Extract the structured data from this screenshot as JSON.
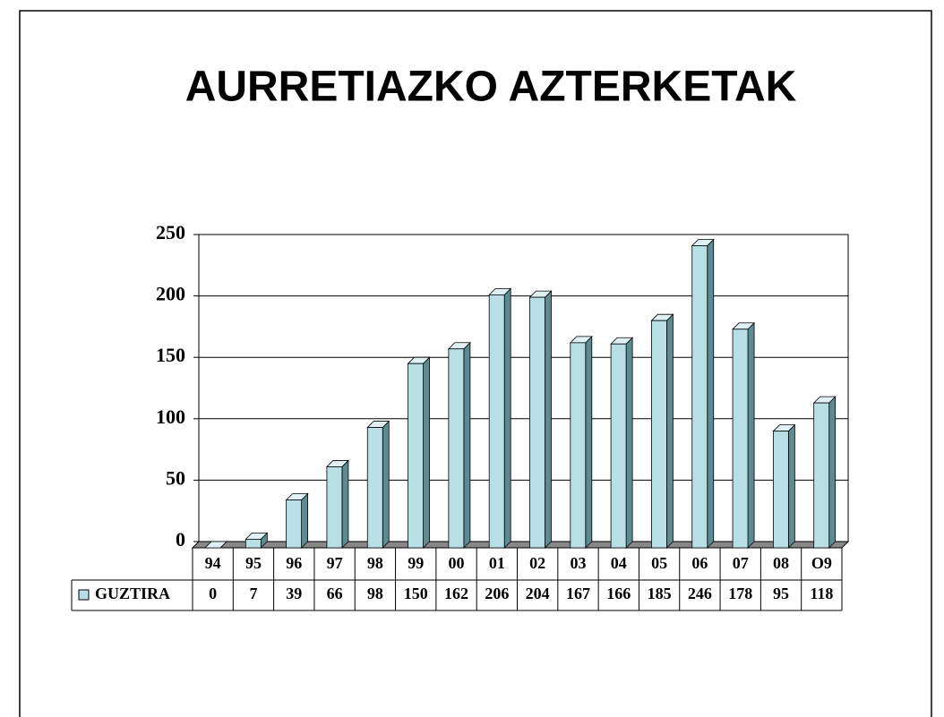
{
  "chart_data": {
    "type": "bar",
    "title": "AURRETIAZKO AZTERKETAK",
    "categories": [
      "94",
      "95",
      "96",
      "97",
      "98",
      "99",
      "00",
      "01",
      "02",
      "03",
      "04",
      "05",
      "06",
      "07",
      "08",
      "O9"
    ],
    "series": [
      {
        "name": "GUZTIRA",
        "color": "#b9dfe6",
        "values": [
          0,
          7,
          39,
          66,
          98,
          150,
          162,
          206,
          204,
          167,
          166,
          185,
          246,
          178,
          95,
          118
        ]
      }
    ],
    "ylim": [
      0,
      250
    ],
    "yticks": [
      0,
      50,
      100,
      150,
      200,
      250
    ],
    "grid": true
  }
}
